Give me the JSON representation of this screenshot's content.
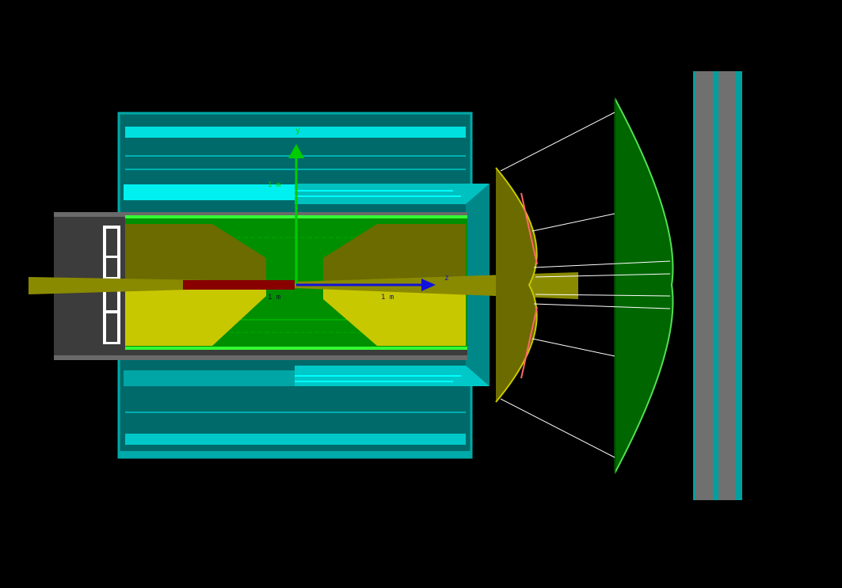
{
  "axes": {
    "y_label": "y",
    "z_label": "z",
    "scale_y": "1 m",
    "scale_z": "1 m",
    "scale_origin": "1 m"
  },
  "colors": {
    "background": "#000000",
    "teal_dark": "#006666",
    "teal_mid": "#00a0a0",
    "cyan": "#00eeee",
    "olive": "#6b6b00",
    "yellow": "#d8d800",
    "green": "#008800",
    "dark_green": "#006600",
    "grey": "#404040",
    "maroon": "#880000",
    "axis_y": "#00cc00",
    "axis_z": "#1111dd"
  }
}
